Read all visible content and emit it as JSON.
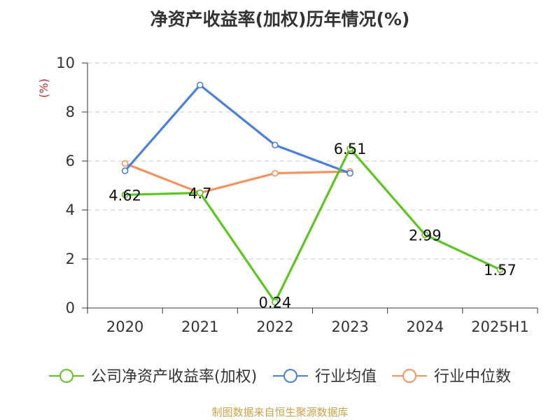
{
  "chart_data": {
    "type": "line",
    "title": "净资产收益率(加权)历年情况(%)",
    "ylabel": "(%)",
    "xlabel": "",
    "categories": [
      "2020",
      "2021",
      "2022",
      "2023",
      "2024",
      "2025H1"
    ],
    "ylim": [
      0,
      10
    ],
    "yticks": [
      0,
      2,
      4,
      6,
      8,
      10
    ],
    "grid": true,
    "legend_position": "bottom",
    "series": [
      {
        "name": "公司净资产收益率(加权)",
        "color": "#5cc520",
        "values": [
          4.62,
          4.7,
          0.24,
          6.51,
          2.99,
          1.57
        ],
        "labels": [
          "4.62",
          "4.7",
          "0.24",
          "6.51",
          "2.99",
          "1.57"
        ],
        "show_labels": true
      },
      {
        "name": "行业均值",
        "color": "#4a7fdd",
        "values": [
          5.6,
          9.1,
          6.65,
          5.5,
          null,
          null
        ],
        "show_labels": false
      },
      {
        "name": "行业中位数",
        "color": "#f59360",
        "values": [
          5.9,
          4.7,
          5.5,
          5.57,
          null,
          null
        ],
        "show_labels": false
      }
    ]
  },
  "source": "制图数据来自恒生聚源数据库"
}
